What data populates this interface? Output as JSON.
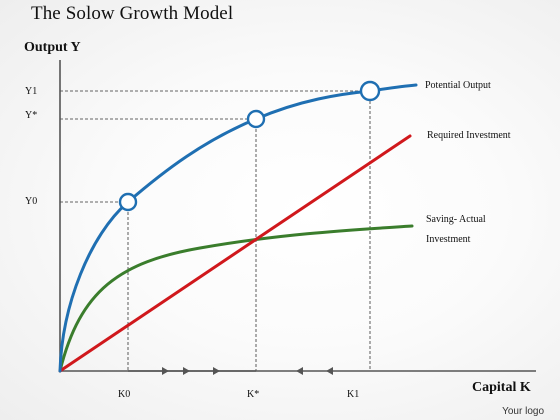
{
  "title": "The Solow Growth Model",
  "logo_text": "Your logo",
  "axes": {
    "y_title": "Output Y",
    "x_title": "Capital K",
    "y_ticks": [
      "Y1",
      "Y*",
      "Y0"
    ],
    "x_ticks": [
      "K0",
      "K*",
      "K1"
    ]
  },
  "curves": {
    "potential_output": {
      "label": "Potential Output",
      "color": "#1f6fb2"
    },
    "required_investment": {
      "label": "Required Investment",
      "color": "#d0181c"
    },
    "saving_actual_investment": {
      "label_line1": "Saving- Actual",
      "label_line2": "Investment",
      "color": "#3a7d2c"
    }
  },
  "arrows": {
    "color": "#555555"
  }
}
